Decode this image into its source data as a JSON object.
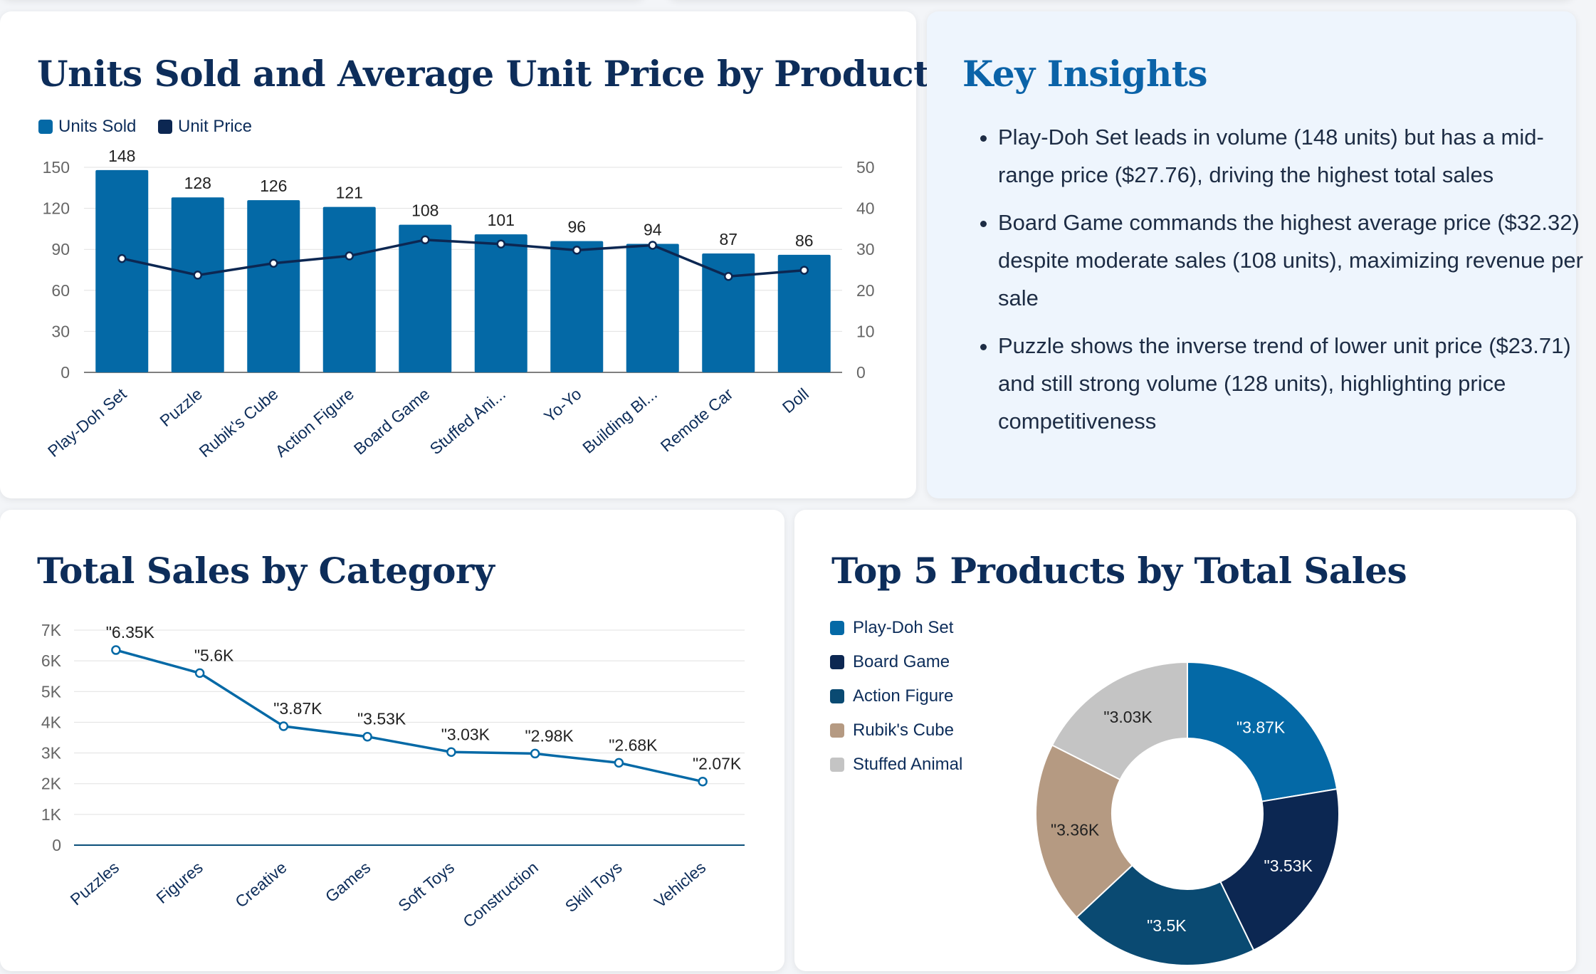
{
  "colors": {
    "primary": "#0469a6",
    "navy": "#0c2752",
    "teal": "#0a4a72",
    "tan": "#b59a82",
    "gray": "#c4c4c4",
    "title": "#0d2d5a",
    "insights_title": "#0b63a8",
    "grid": "#e1e1e1",
    "axis_text": "#666666"
  },
  "units_chart": {
    "title": "Units Sold and Average Unit Price by Product",
    "legend": [
      {
        "label": "Units Sold",
        "color_key": "primary"
      },
      {
        "label": "Unit Price",
        "color_key": "navy"
      }
    ]
  },
  "insights": {
    "title": "Key Insights",
    "bullets": [
      "Play-Doh Set leads in volume (148 units) but has a mid-range price ($27.76), driving the highest total sales",
      "Board Game commands the highest average price ($32.32) despite moderate sales (108 units), maximizing revenue per sale",
      "Puzzle shows the inverse trend of lower unit price ($23.71) and still strong volume (128 units), highlighting price competitiveness"
    ]
  },
  "category_chart": {
    "title": "Total Sales by Category"
  },
  "donut_chart": {
    "title": "Top 5 Products by Total Sales",
    "legend": [
      "Play-Doh Set",
      "Board Game",
      "Action Figure",
      "Rubik's Cube",
      "Stuffed Animal"
    ]
  },
  "chart_data": [
    {
      "type": "bar",
      "title": "Units Sold and Average Unit Price by Product",
      "categories": [
        "Play-Doh Set",
        "Puzzle",
        "Rubik's Cube",
        "Action Figure",
        "Board Game",
        "Stuffed Ani...",
        "Yo-Yo",
        "Building Bl...",
        "Remote Car",
        "Doll"
      ],
      "series": [
        {
          "name": "Units Sold",
          "type": "bar",
          "axis": "left",
          "values": [
            148,
            128,
            126,
            121,
            108,
            101,
            96,
            94,
            87,
            86
          ],
          "data_labels": [
            "148",
            "128",
            "126",
            "121",
            "108",
            "101",
            "96",
            "94",
            "87",
            "86"
          ]
        },
        {
          "name": "Unit Price",
          "type": "line",
          "axis": "right",
          "values": [
            27.76,
            23.71,
            26.6,
            28.4,
            32.32,
            31.3,
            29.8,
            31.0,
            23.4,
            24.9
          ]
        }
      ],
      "y_left": {
        "min": 0,
        "max": 150,
        "ticks": [
          "0",
          "30",
          "60",
          "90",
          "120",
          "150"
        ]
      },
      "y_right": {
        "min": 0,
        "max": 50,
        "ticks": [
          "0",
          "10",
          "20",
          "30",
          "40",
          "50"
        ]
      },
      "grid": true,
      "legend_position": "top-left"
    },
    {
      "type": "line",
      "title": "Total Sales by Category",
      "categories": [
        "Puzzles",
        "Figures",
        "Creative",
        "Games",
        "Soft Toys",
        "Construction",
        "Skill Toys",
        "Vehicles"
      ],
      "values": [
        6350,
        5600,
        3870,
        3530,
        3030,
        2980,
        2680,
        2070
      ],
      "data_labels": [
        "\"6.35K",
        "\"5.6K",
        "\"3.87K",
        "\"3.53K",
        "\"3.03K",
        "\"2.98K",
        "\"2.68K",
        "\"2.07K"
      ],
      "ylim": [
        0,
        7000
      ],
      "y_ticks": [
        "0",
        "1K",
        "2K",
        "3K",
        "4K",
        "5K",
        "6K",
        "7K"
      ],
      "grid": true
    },
    {
      "type": "pie",
      "title": "Top 5 Products by Total Sales",
      "labels": [
        "Play-Doh Set",
        "Board Game",
        "Action Figure",
        "Rubik's Cube",
        "Stuffed Animal"
      ],
      "values": [
        3870,
        3530,
        3500,
        3360,
        3030
      ],
      "data_labels": [
        "\"3.87K",
        "\"3.53K",
        "\"3.5K",
        "\"3.36K",
        "\"3.03K"
      ],
      "color_keys": [
        "primary",
        "navy",
        "teal",
        "tan",
        "gray"
      ],
      "donut": true,
      "legend_position": "left"
    }
  ]
}
